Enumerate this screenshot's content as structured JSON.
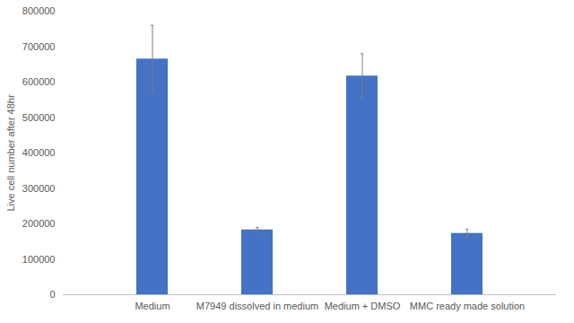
{
  "chart_data": {
    "type": "bar",
    "y_label": "Live cell number after 48hr",
    "categories": [
      "Medium",
      "M7949 dissolved in medium",
      "Medium + DMSO",
      "MMC ready made solution"
    ],
    "values": [
      665000,
      183000,
      617000,
      173000
    ],
    "errors": [
      95000,
      7000,
      63000,
      12000
    ],
    "color": "#4472c4",
    "ylim": [
      0,
      800000
    ],
    "yticks": [
      0,
      100000,
      200000,
      300000,
      400000,
      500000,
      600000,
      700000,
      800000
    ],
    "grid": false
  }
}
